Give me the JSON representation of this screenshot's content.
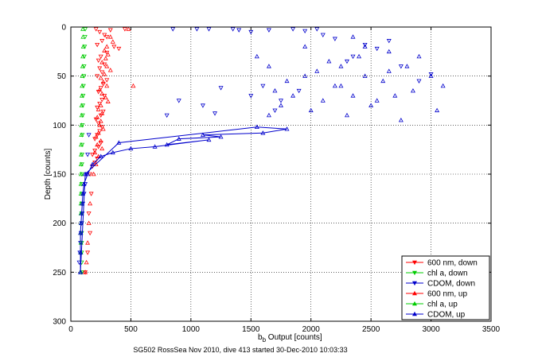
{
  "chart_data": {
    "type": "scatter",
    "xlabel_main": "b",
    "xlabel_sub": "b",
    "xlabel_rest": " Output [counts]",
    "ylabel": "Depth [counts]",
    "caption": "SG502 RossSea Nov 2010, dive 413 started 30-Dec-2010 10:03:33",
    "xlim": [
      0,
      3500
    ],
    "ylim": [
      0,
      300
    ],
    "y_reversed": true,
    "x_ticks": [
      0,
      500,
      1000,
      1500,
      2000,
      2500,
      3000,
      3500
    ],
    "y_ticks": [
      0,
      50,
      100,
      150,
      200,
      250,
      300
    ],
    "grid": true,
    "legend_position": "bottom-right",
    "series": [
      {
        "name": "600 nm, down",
        "color": "#ff0000",
        "marker": "triangle-down",
        "line": false,
        "x": [
          210,
          240,
          280,
          300,
          330,
          260,
          220,
          360,
          400,
          450,
          300,
          250,
          230,
          280,
          240,
          260,
          220,
          300,
          270,
          250,
          230,
          280,
          260,
          240,
          220,
          270,
          250,
          210,
          230,
          260,
          240,
          220,
          200,
          250,
          230,
          200,
          180,
          220,
          200,
          180,
          160,
          170,
          150,
          160,
          140,
          120
        ],
        "y": [
          2,
          5,
          8,
          10,
          3,
          14,
          18,
          20,
          22,
          2,
          26,
          30,
          34,
          38,
          42,
          46,
          50,
          54,
          58,
          62,
          66,
          70,
          74,
          78,
          82,
          86,
          90,
          94,
          98,
          102,
          106,
          110,
          114,
          118,
          122,
          126,
          130,
          134,
          138,
          142,
          150,
          170,
          190,
          210,
          230,
          250
        ]
      },
      {
        "name": "chl a, down",
        "color": "#00cc00",
        "marker": "triangle-down",
        "line": false,
        "x": [
          120,
          118,
          115,
          112,
          110,
          108,
          105,
          102,
          100,
          98,
          96,
          95,
          94,
          93,
          92,
          92,
          91,
          90,
          90,
          90,
          90,
          90,
          90,
          90,
          90,
          90
        ],
        "y": [
          2,
          10,
          20,
          30,
          40,
          50,
          60,
          70,
          80,
          90,
          100,
          110,
          120,
          130,
          140,
          150,
          160,
          170,
          180,
          190,
          200,
          210,
          220,
          230,
          240,
          250
        ]
      },
      {
        "name": "CDOM, down",
        "color": "#0000cc",
        "marker": "triangle-down",
        "line": false,
        "x": [
          850,
          1050,
          1150,
          1350,
          1400,
          1500,
          1650,
          1850,
          1950,
          2050,
          2100,
          2200,
          2350,
          2550,
          2650,
          2750,
          2900,
          3000,
          2450,
          2300,
          1250,
          1500,
          1750,
          900,
          1100,
          1600,
          1700,
          800,
          1200,
          1900
        ],
        "y": [
          2,
          2,
          2,
          2,
          3,
          5,
          3,
          2,
          4,
          2,
          8,
          12,
          30,
          22,
          14,
          40,
          55,
          48,
          18,
          35,
          62,
          70,
          75,
          75,
          80,
          60,
          85,
          90,
          88,
          65
        ],
        "x2": [
          150,
          140,
          130,
          120,
          110,
          100,
          95,
          90,
          85,
          80,
          75,
          70
        ],
        "y2": [
          110,
          130,
          150,
          160,
          170,
          180,
          190,
          200,
          210,
          220,
          230,
          240
        ]
      },
      {
        "name": "600 nm, up",
        "color": "#ff0000",
        "marker": "triangle-up",
        "line": false,
        "x": [
          330,
          350,
          300,
          280,
          310,
          290,
          260,
          300,
          330,
          280,
          250,
          270,
          300,
          240,
          260,
          290,
          310,
          250,
          230,
          260,
          220,
          250,
          240,
          270,
          230,
          210,
          250,
          220,
          260,
          200,
          230,
          480,
          520,
          210,
          190,
          160,
          150,
          140,
          130,
          120
        ],
        "y": [
          10,
          15,
          20,
          24,
          28,
          32,
          36,
          40,
          44,
          48,
          52,
          56,
          60,
          64,
          68,
          72,
          76,
          80,
          84,
          88,
          92,
          96,
          100,
          104,
          108,
          112,
          116,
          120,
          124,
          128,
          132,
          2,
          60,
          140,
          150,
          180,
          200,
          220,
          240,
          250
        ]
      },
      {
        "name": "chl a, up",
        "color": "#00cc00",
        "marker": "triangle-up",
        "line": false,
        "x": [
          100,
          102,
          104,
          100,
          98,
          96,
          94,
          92,
          90,
          90,
          88,
          88,
          86,
          86,
          85,
          85,
          84,
          84,
          84,
          84,
          84,
          84,
          84,
          84,
          84
        ],
        "y": [
          2,
          10,
          20,
          30,
          40,
          50,
          60,
          70,
          80,
          90,
          100,
          110,
          120,
          130,
          140,
          150,
          160,
          170,
          180,
          190,
          200,
          210,
          220,
          230,
          250
        ]
      },
      {
        "name": "CDOM, up",
        "color": "#0000cc",
        "marker": "triangle-up",
        "line": true,
        "x": [
          80,
          120,
          400,
          1550,
          1800,
          1600,
          1100,
          1250,
          900,
          800,
          1150,
          700,
          500,
          350,
          250,
          180,
          140,
          110,
          100,
          95,
          90,
          85,
          80,
          80,
          80
        ],
        "y": [
          250,
          150,
          118,
          102,
          104,
          108,
          110,
          112,
          114,
          120,
          115,
          122,
          124,
          128,
          132,
          140,
          150,
          160,
          170,
          180,
          190,
          200,
          210,
          230,
          250
        ],
        "scatter_x": [
          1550,
          1650,
          1700,
          1800,
          1850,
          1950,
          2000,
          2050,
          2100,
          2200,
          2250,
          2300,
          2350,
          2400,
          2450,
          2500,
          2600,
          2650,
          2700,
          2800,
          2850,
          2900,
          3000,
          3050,
          3100,
          2550,
          2750,
          2450,
          2350,
          2150,
          1950,
          1750,
          1650,
          2250,
          2650
        ],
        "scatter_y": [
          30,
          40,
          65,
          55,
          70,
          50,
          85,
          45,
          75,
          60,
          40,
          90,
          70,
          30,
          50,
          80,
          55,
          25,
          70,
          40,
          65,
          30,
          50,
          85,
          60,
          75,
          95,
          20,
          10,
          35,
          20,
          80,
          90,
          60,
          45
        ]
      }
    ]
  }
}
